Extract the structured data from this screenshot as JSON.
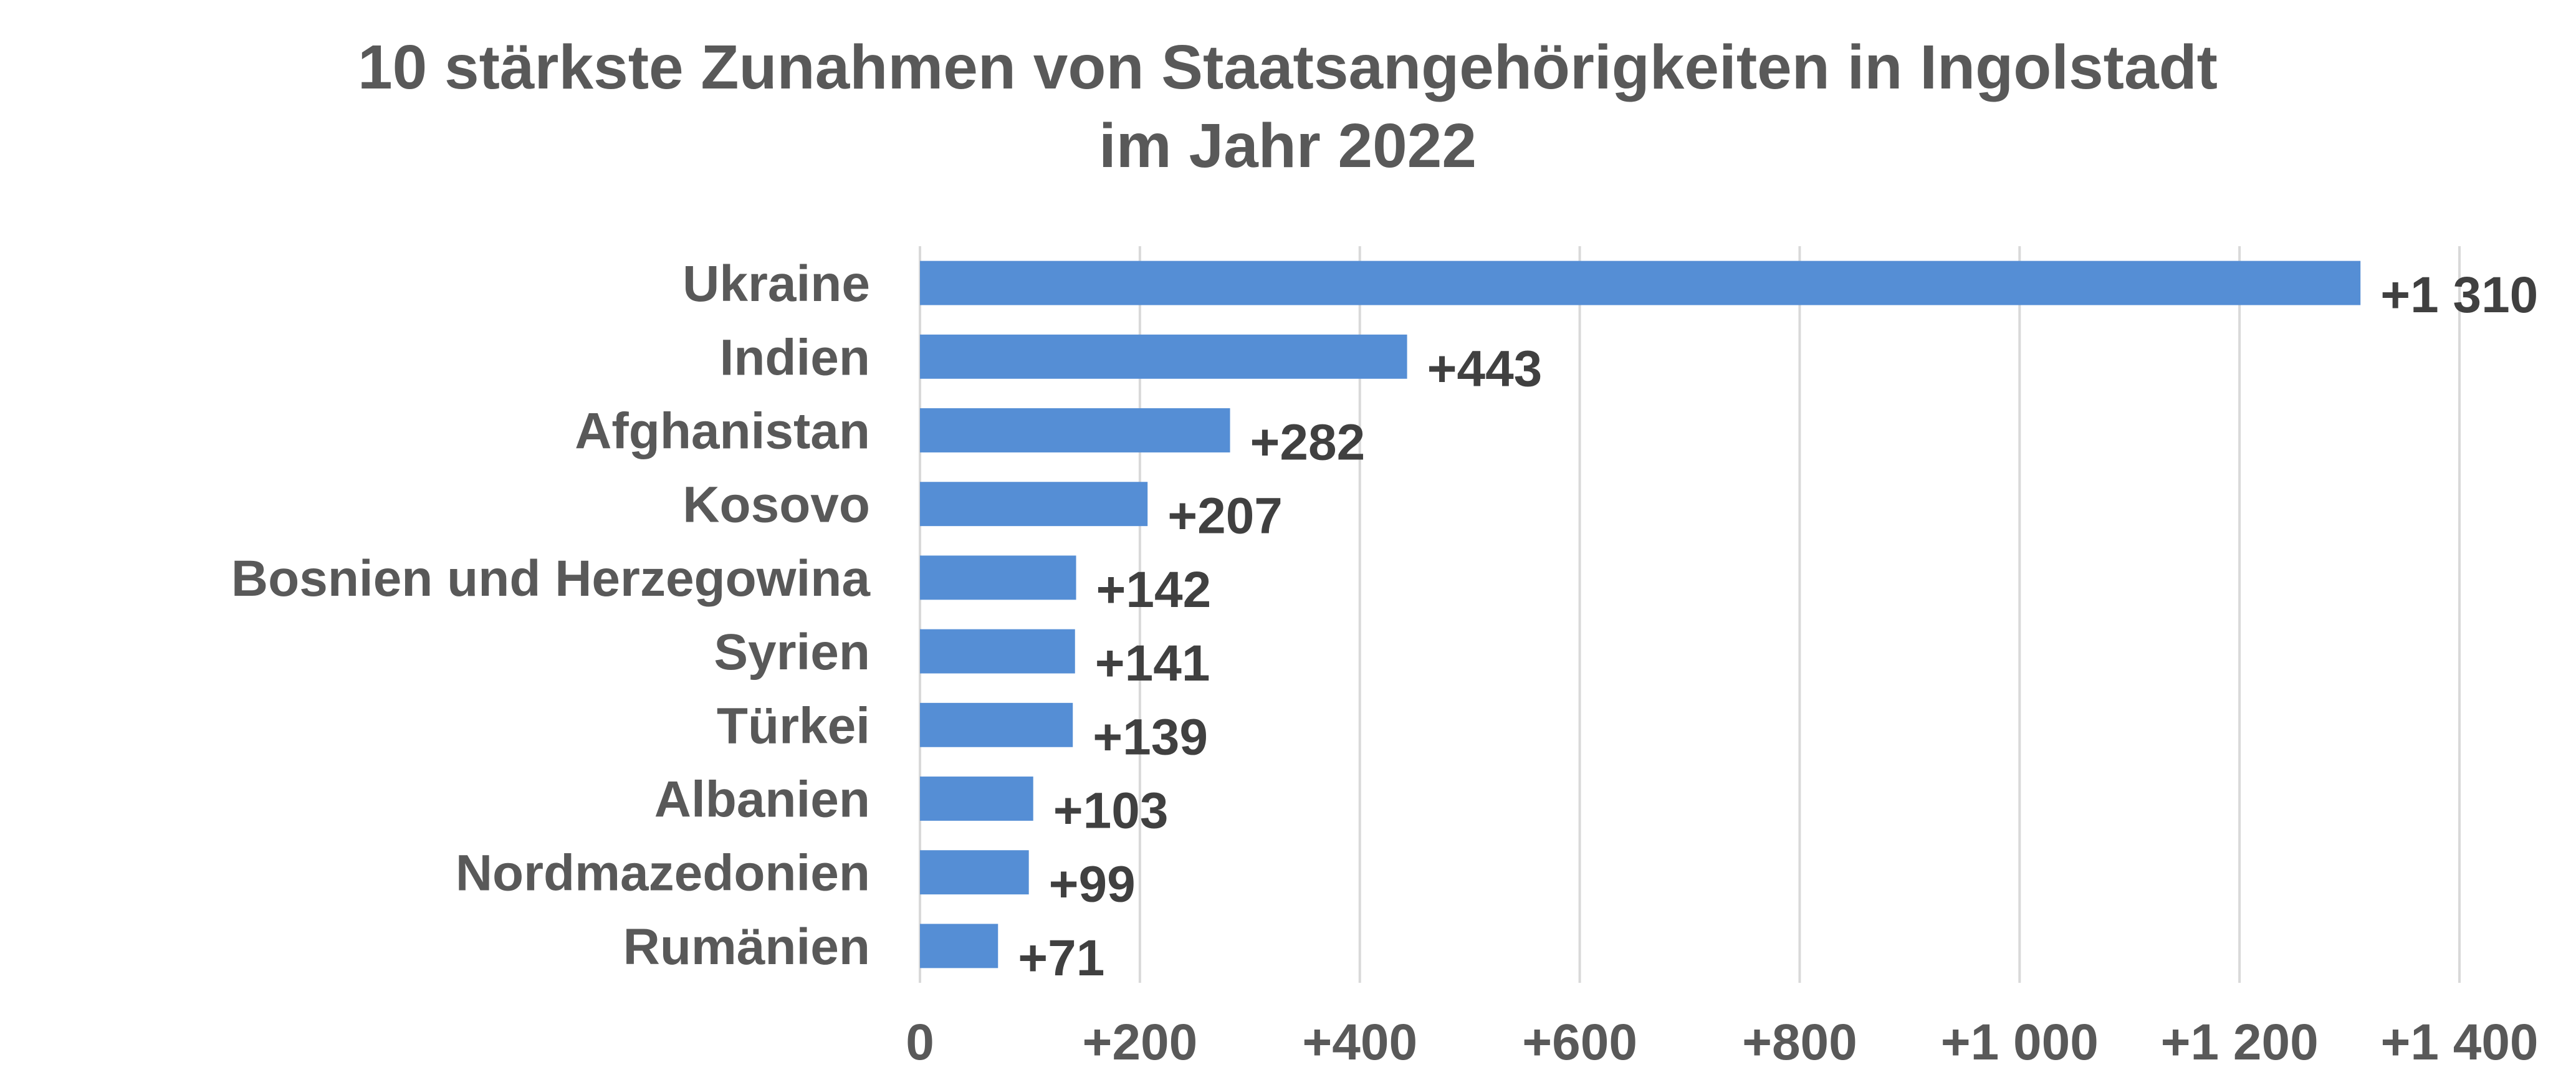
{
  "chart_data": {
    "type": "bar",
    "orientation": "horizontal",
    "title": "10 stärkste Zunahmen von Staatsangehörigkeiten in Ingolstadt",
    "subtitle": "im Jahr 2022",
    "categories": [
      "Ukraine",
      "Indien",
      "Afghanistan",
      "Kosovo",
      "Bosnien und Herzegowina",
      "Syrien",
      "Türkei",
      "Albanien",
      "Nordmazedonien",
      "Rumänien"
    ],
    "values": [
      1310,
      443,
      282,
      207,
      142,
      141,
      139,
      103,
      99,
      71
    ],
    "data_labels": [
      "+1 310",
      "+443",
      "+282",
      "+207",
      "+142",
      "+141",
      "+139",
      "+103",
      "+99",
      "+71"
    ],
    "xlim": [
      0,
      1400
    ],
    "xticks": [
      0,
      200,
      400,
      600,
      800,
      1000,
      1200,
      1400
    ],
    "xtick_labels": [
      "0",
      "+200",
      "+400",
      "+600",
      "+800",
      "+1 000",
      "+1 200",
      "+1 400"
    ],
    "grid": "vertical",
    "legend": "none",
    "bar_color": "#558ED5"
  }
}
